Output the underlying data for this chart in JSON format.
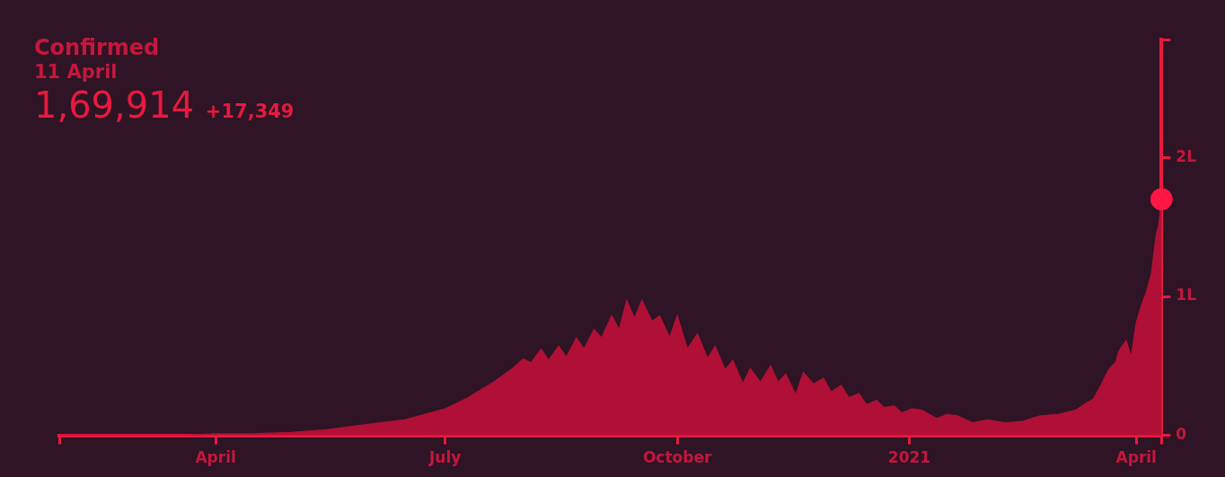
{
  "chart_data": {
    "type": "area",
    "title": "Confirmed",
    "subtitle": "11 April",
    "annotations": [
      "1,69,914",
      "+17,349"
    ],
    "xlim": [
      "2020-01-30",
      "2021-04-11"
    ],
    "xticks": [
      {
        "value": "2020-01-30",
        "label": null
      },
      {
        "value": "2020-04-01",
        "label": "April"
      },
      {
        "value": "2020-07-01",
        "label": "July"
      },
      {
        "value": "2020-10-01",
        "label": "October"
      },
      {
        "value": "2021-01-01",
        "label": "2021"
      },
      {
        "value": "2021-04-01",
        "label": "April"
      },
      {
        "value": "2021-04-11",
        "label": null
      }
    ],
    "ylim": [
      0,
      2.85
    ],
    "yticks": [
      0,
      {
        "value": 1,
        "label": "1L"
      },
      {
        "value": 2,
        "label": "2L"
      },
      {
        "value": 2.85,
        "label": null
      }
    ],
    "grid": false,
    "legend": false,
    "series": [
      {
        "color": "#b01035",
        "x": [
          "2020-01-30",
          "2020-03-01",
          "2020-03-20",
          "2020-04-01",
          "2020-04-15",
          "2020-05-01",
          "2020-05-15",
          "2020-06-01",
          "2020-06-15",
          "2020-07-01",
          "2020-07-10",
          "2020-07-20",
          "2020-07-27",
          "2020-08-01",
          "2020-08-04",
          "2020-08-08",
          "2020-08-11",
          "2020-08-15",
          "2020-08-18",
          "2020-08-22",
          "2020-08-25",
          "2020-08-29",
          "2020-09-01",
          "2020-09-05",
          "2020-09-08",
          "2020-09-11",
          "2020-09-14",
          "2020-09-17",
          "2020-09-21",
          "2020-09-24",
          "2020-09-28",
          "2020-10-01",
          "2020-10-05",
          "2020-10-09",
          "2020-10-13",
          "2020-10-16",
          "2020-10-20",
          "2020-10-23",
          "2020-10-27",
          "2020-10-30",
          "2020-11-03",
          "2020-11-07",
          "2020-11-10",
          "2020-11-13",
          "2020-11-17",
          "2020-11-20",
          "2020-11-24",
          "2020-11-28",
          "2020-12-01",
          "2020-12-05",
          "2020-12-08",
          "2020-12-12",
          "2020-12-15",
          "2020-12-19",
          "2020-12-22",
          "2020-12-26",
          "2020-12-29",
          "2021-01-02",
          "2021-01-06",
          "2021-01-12",
          "2021-01-16",
          "2021-01-20",
          "2021-01-26",
          "2021-02-01",
          "2021-02-08",
          "2021-02-15",
          "2021-02-22",
          "2021-03-01",
          "2021-03-08",
          "2021-03-12",
          "2021-03-15",
          "2021-03-18",
          "2021-03-21",
          "2021-03-24",
          "2021-03-25",
          "2021-03-26",
          "2021-03-28",
          "2021-03-30",
          "2021-04-01",
          "2021-04-03",
          "2021-04-05",
          "2021-04-07",
          "2021-04-08",
          "2021-04-09",
          "2021-04-10",
          "2021-04-11"
        ],
        "values": [
          0,
          0,
          0,
          0.01,
          0.01,
          0.02,
          0.04,
          0.08,
          0.11,
          0.19,
          0.27,
          0.38,
          0.47,
          0.55,
          0.52,
          0.62,
          0.54,
          0.64,
          0.56,
          0.7,
          0.62,
          0.76,
          0.7,
          0.86,
          0.76,
          0.97,
          0.84,
          0.97,
          0.82,
          0.86,
          0.7,
          0.86,
          0.62,
          0.73,
          0.55,
          0.64,
          0.47,
          0.54,
          0.37,
          0.48,
          0.38,
          0.5,
          0.38,
          0.44,
          0.29,
          0.45,
          0.37,
          0.41,
          0.31,
          0.36,
          0.27,
          0.3,
          0.22,
          0.25,
          0.2,
          0.21,
          0.16,
          0.19,
          0.18,
          0.12,
          0.15,
          0.14,
          0.09,
          0.11,
          0.09,
          0.1,
          0.14,
          0.15,
          0.18,
          0.23,
          0.26,
          0.36,
          0.47,
          0.53,
          0.6,
          0.63,
          0.68,
          0.56,
          0.81,
          0.93,
          1.03,
          1.16,
          1.31,
          1.45,
          1.52,
          1.7
        ]
      },
      {
        "type": "scatter",
        "color": "#ff1744",
        "marker": "circle",
        "x": [
          "2021-04-11"
        ],
        "values": [
          1.7
        ]
      }
    ]
  }
}
